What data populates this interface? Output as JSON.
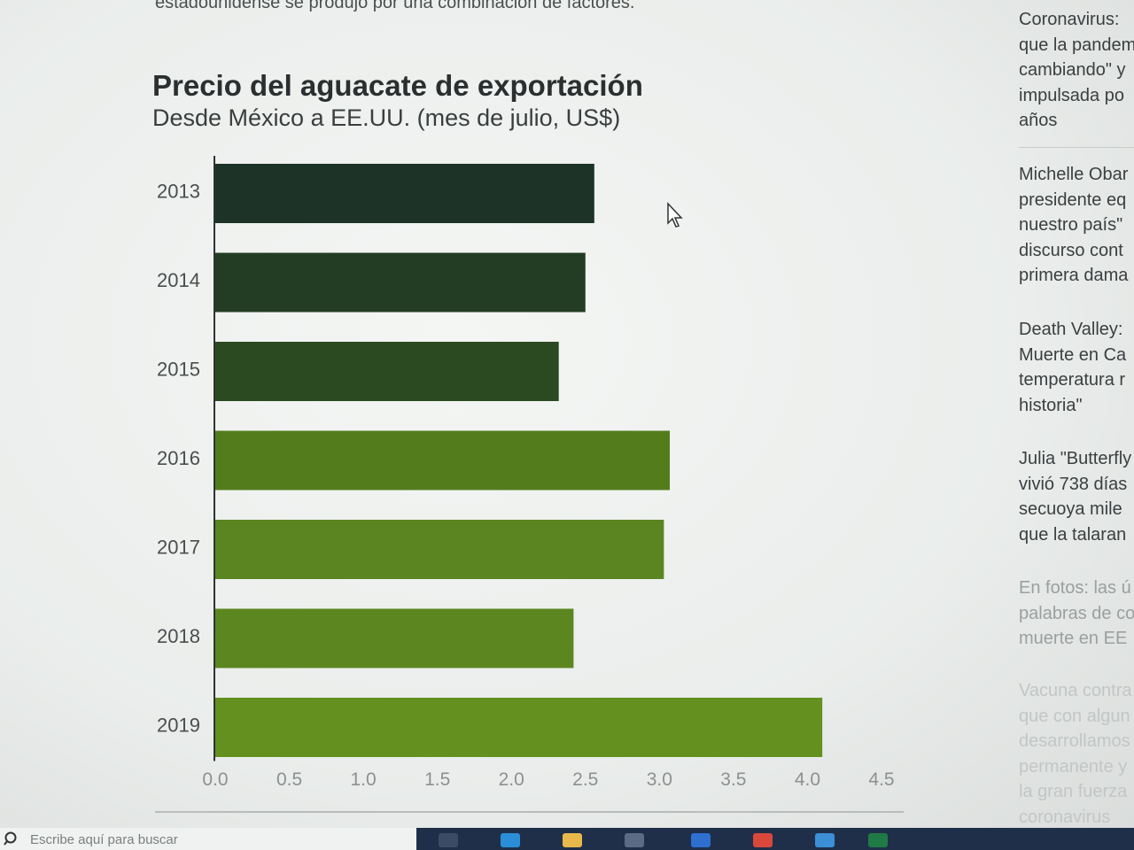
{
  "article": {
    "top_line": "estadounidense se produjo por una combinación de factores."
  },
  "chart_data": {
    "type": "bar",
    "orientation": "horizontal",
    "title": "Precio del aguacate de exportación",
    "subtitle": "Desde México a EE.UU. (mes de julio, US$)",
    "categories": [
      "2013",
      "2014",
      "2015",
      "2016",
      "2017",
      "2018",
      "2019"
    ],
    "values": [
      2.56,
      2.5,
      2.32,
      3.07,
      3.03,
      2.42,
      4.1
    ],
    "bar_colors": [
      "#1d3327",
      "#233d24",
      "#2c4a21",
      "#537d1d",
      "#5a8520",
      "#5c8720",
      "#63901f"
    ],
    "x_ticks": [
      "0.0",
      "0.5",
      "1.0",
      "1.5",
      "2.0",
      "2.5",
      "3.0",
      "3.5",
      "4.0",
      "4.5"
    ],
    "xlim": [
      0,
      4.5
    ],
    "grid": false
  },
  "sidebar": {
    "items": [
      {
        "lines": [
          "Coronavirus:",
          "que la pandem",
          "cambiando\" y",
          "impulsada po",
          "años"
        ]
      },
      {
        "lines": [
          "Michelle Obar",
          "presidente eq",
          "nuestro país\"",
          "discurso cont",
          "primera dama"
        ]
      },
      {
        "lines": [
          "Death Valley:",
          "Muerte en Ca",
          "temperatura r",
          "historia\""
        ]
      },
      {
        "lines": [
          "Julia \"Butterfly",
          "vivió 738 días",
          "secuoya mile",
          "que la talaran"
        ]
      },
      {
        "lines": [
          "En fotos: las ú",
          "palabras de co",
          "muerte en EE"
        ]
      },
      {
        "lines": [
          "Vacuna contra",
          "que con algun",
          "desarrollamos",
          "permanente y",
          "la gran fuerza",
          "coronavirus"
        ]
      }
    ]
  },
  "taskbar": {
    "search_placeholder": "Escribe aquí para buscar"
  },
  "colors": {
    "taskbar": "#1f2f4a",
    "axis": "#2e3233"
  }
}
